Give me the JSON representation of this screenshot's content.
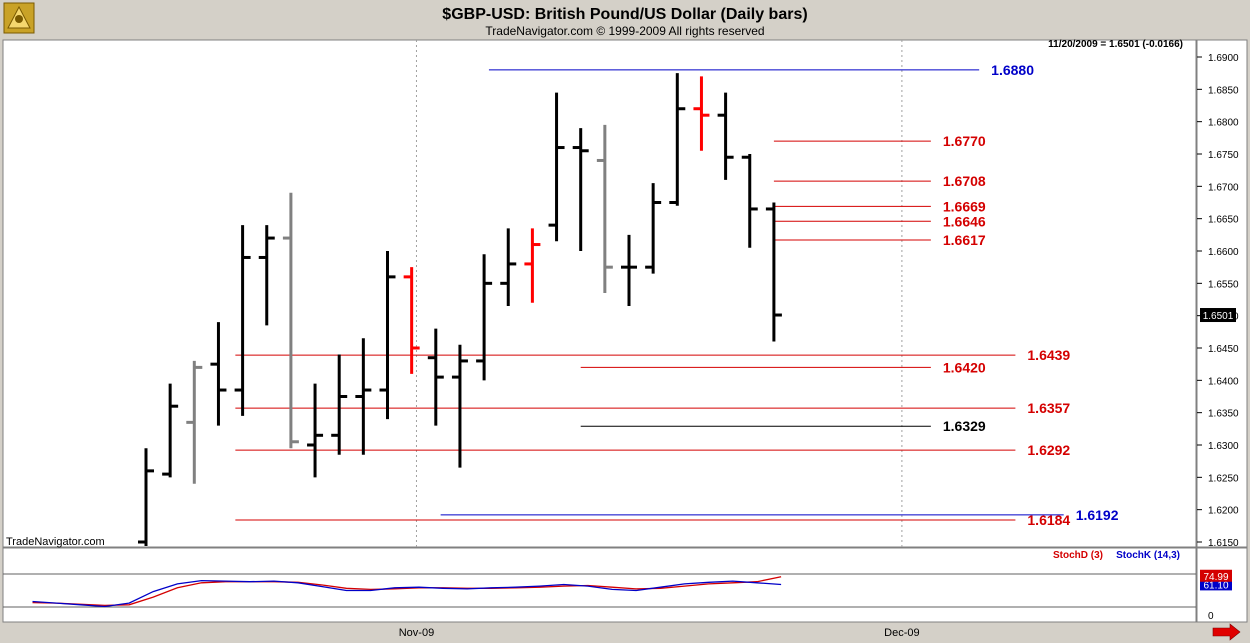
{
  "header": {
    "title": "$GBP-USD:  British Pound/US Dollar  (Daily bars)",
    "subtitle": "TradeNavigator.com © 1999-2009 All rights reserved",
    "readout": "11/20/2009 = 1.6501 (-0.0166)"
  },
  "watermark": "TradeNavigator.com",
  "colors": {
    "up": "#000000",
    "down": "#808080",
    "highlight": "#ff0000",
    "support": "#d40000",
    "major": "#0000c8",
    "stochD": "#d40000",
    "stochK": "#0000c8"
  },
  "chart_data": {
    "type": "ohlc",
    "ylim": [
      1.614,
      1.693
    ],
    "yticks": [
      "1.6900",
      "1.6850",
      "1.6800",
      "1.6750",
      "1.6700",
      "1.6650",
      "1.6600",
      "1.6550",
      "1.6500",
      "1.6450",
      "1.6400",
      "1.6350",
      "1.6300",
      "1.6250",
      "1.6200",
      "1.6150"
    ],
    "last_price": "1.6501",
    "xticks": [
      {
        "label": "Nov-09",
        "index": 11.2
      },
      {
        "label": "Dec-09",
        "index": 31.3
      }
    ],
    "bars": [
      {
        "o": 1.615,
        "h": 1.6295,
        "l": 1.614,
        "c": 1.626,
        "color": "up"
      },
      {
        "o": 1.6255,
        "h": 1.6395,
        "l": 1.625,
        "c": 1.636,
        "color": "up"
      },
      {
        "o": 1.6335,
        "h": 1.643,
        "l": 1.624,
        "c": 1.642,
        "color": "down"
      },
      {
        "o": 1.6425,
        "h": 1.649,
        "l": 1.633,
        "c": 1.6385,
        "color": "up"
      },
      {
        "o": 1.6385,
        "h": 1.664,
        "l": 1.6345,
        "c": 1.659,
        "color": "up"
      },
      {
        "o": 1.659,
        "h": 1.664,
        "l": 1.6485,
        "c": 1.662,
        "color": "up"
      },
      {
        "o": 1.662,
        "h": 1.669,
        "l": 1.6295,
        "c": 1.6305,
        "color": "down"
      },
      {
        "o": 1.63,
        "h": 1.6395,
        "l": 1.625,
        "c": 1.6315,
        "color": "up"
      },
      {
        "o": 1.6315,
        "h": 1.644,
        "l": 1.6285,
        "c": 1.6375,
        "color": "up"
      },
      {
        "o": 1.6375,
        "h": 1.6465,
        "l": 1.6285,
        "c": 1.6385,
        "color": "up"
      },
      {
        "o": 1.6385,
        "h": 1.66,
        "l": 1.634,
        "c": 1.656,
        "color": "up"
      },
      {
        "o": 1.656,
        "h": 1.6575,
        "l": 1.641,
        "c": 1.645,
        "color": "highlight"
      },
      {
        "o": 1.6435,
        "h": 1.648,
        "l": 1.633,
        "c": 1.6405,
        "color": "up"
      },
      {
        "o": 1.6405,
        "h": 1.6455,
        "l": 1.6265,
        "c": 1.643,
        "color": "up"
      },
      {
        "o": 1.643,
        "h": 1.6595,
        "l": 1.64,
        "c": 1.655,
        "color": "up"
      },
      {
        "o": 1.655,
        "h": 1.6635,
        "l": 1.6515,
        "c": 1.658,
        "color": "up"
      },
      {
        "o": 1.658,
        "h": 1.6635,
        "l": 1.652,
        "c": 1.661,
        "color": "highlight"
      },
      {
        "o": 1.664,
        "h": 1.6845,
        "l": 1.6615,
        "c": 1.676,
        "color": "up"
      },
      {
        "o": 1.676,
        "h": 1.679,
        "l": 1.66,
        "c": 1.6755,
        "color": "up"
      },
      {
        "o": 1.674,
        "h": 1.6795,
        "l": 1.6535,
        "c": 1.6575,
        "color": "down"
      },
      {
        "o": 1.6575,
        "h": 1.6625,
        "l": 1.6515,
        "c": 1.6575,
        "color": "up"
      },
      {
        "o": 1.6575,
        "h": 1.6705,
        "l": 1.6565,
        "c": 1.6675,
        "color": "up"
      },
      {
        "o": 1.6675,
        "h": 1.6875,
        "l": 1.667,
        "c": 1.682,
        "color": "up"
      },
      {
        "o": 1.682,
        "h": 1.687,
        "l": 1.6755,
        "c": 1.681,
        "color": "highlight"
      },
      {
        "o": 1.681,
        "h": 1.6845,
        "l": 1.671,
        "c": 1.6745,
        "color": "up"
      },
      {
        "o": 1.6745,
        "h": 1.675,
        "l": 1.6605,
        "c": 1.6665,
        "color": "up"
      },
      {
        "o": 1.6665,
        "h": 1.6675,
        "l": 1.646,
        "c": 1.6501,
        "color": "up"
      }
    ],
    "levels": [
      {
        "price": 1.688,
        "label": "1.6880",
        "color": "major",
        "from": 14.2,
        "to": 34.5
      },
      {
        "price": 1.677,
        "label": "1.6770",
        "color": "support",
        "from": 26.0,
        "to": 32.5
      },
      {
        "price": 1.6708,
        "label": "1.6708",
        "color": "support",
        "from": 26.0,
        "to": 32.5
      },
      {
        "price": 1.6669,
        "label": "1.6669",
        "color": "support",
        "from": 26.0,
        "to": 32.5
      },
      {
        "price": 1.6646,
        "label": "1.6646",
        "color": "support",
        "from": 26.0,
        "to": 32.5
      },
      {
        "price": 1.6617,
        "label": "1.6617",
        "color": "support",
        "from": 26.0,
        "to": 32.5
      },
      {
        "price": 1.6439,
        "label": "1.6439",
        "color": "support",
        "from": 3.7,
        "to": 36.0
      },
      {
        "price": 1.642,
        "label": "1.6420",
        "color": "support",
        "from": 18.0,
        "to": 32.5
      },
      {
        "price": 1.6357,
        "label": "1.6357",
        "color": "support",
        "from": 3.7,
        "to": 36.0
      },
      {
        "price": 1.6329,
        "label": "1.6329",
        "color": "up",
        "from": 18.0,
        "to": 32.5
      },
      {
        "price": 1.6292,
        "label": "1.6292",
        "color": "support",
        "from": 3.7,
        "to": 36.0
      },
      {
        "price": 1.6192,
        "label": "1.6192",
        "color": "major",
        "from": 12.2,
        "to": 38.0
      },
      {
        "price": 1.6184,
        "label": "1.6184",
        "color": "support",
        "from": 3.7,
        "to": 36.0
      }
    ],
    "indicator": {
      "name_d": "StochD (3)",
      "name_k": "StochK (14,3)",
      "ylim": [
        0,
        100
      ],
      "hlines": [
        20,
        80
      ],
      "yticks": [
        "0"
      ],
      "last_d": "74.99",
      "last_k": "61.10",
      "x": [
        -4.7,
        -3.7,
        -2.7,
        -1.7,
        -0.7,
        0.3,
        1.3,
        2.3,
        3.3,
        4.3,
        5.3,
        6.3,
        7.3,
        8.3,
        9.3,
        10.3,
        11.3,
        12.3,
        13.3,
        14.3,
        15.3,
        16.3,
        17.3,
        18.3,
        19.3,
        20.3,
        21.3,
        22.3,
        23.3,
        24.3,
        25.3,
        26.3
      ],
      "d": [
        28,
        27,
        25,
        23,
        24,
        38,
        55,
        64,
        66,
        66,
        66,
        65,
        60,
        54,
        52,
        53,
        55,
        55,
        54,
        54,
        55,
        56,
        58,
        59,
        56,
        53,
        54,
        58,
        62,
        64,
        66,
        75
      ],
      "k": [
        30,
        27,
        24,
        21,
        27,
        48,
        62,
        68,
        67,
        66,
        67,
        64,
        57,
        50,
        50,
        55,
        56,
        54,
        53,
        55,
        56,
        58,
        61,
        58,
        52,
        50,
        56,
        62,
        65,
        67,
        64,
        61
      ]
    }
  }
}
